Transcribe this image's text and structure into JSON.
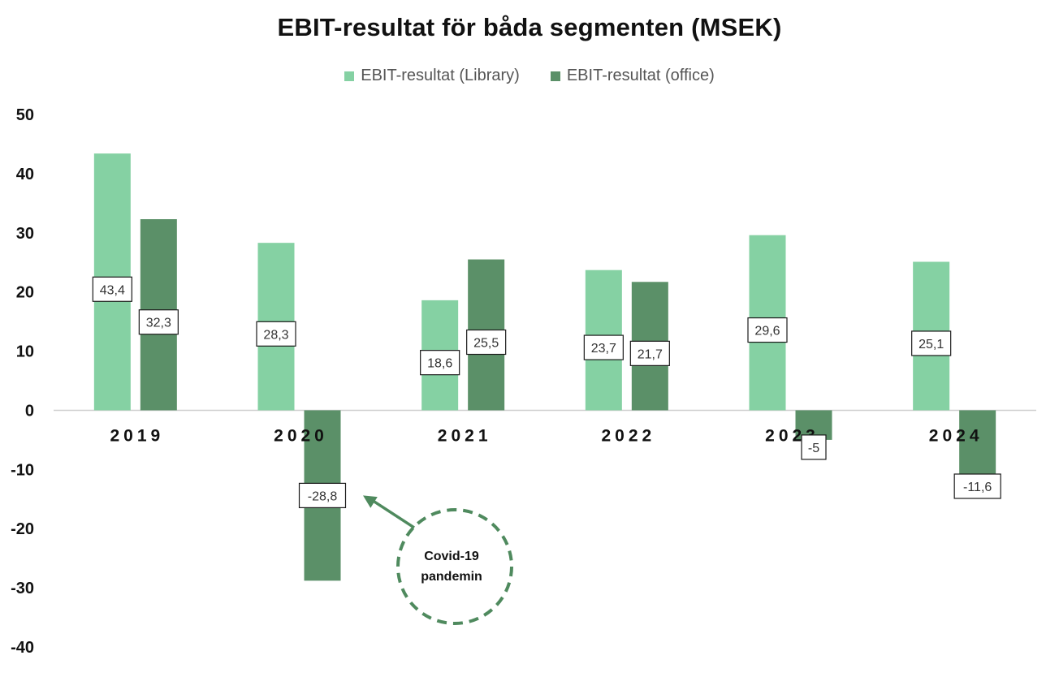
{
  "chart_data": {
    "type": "bar",
    "title": "EBIT-resultat för båda segmenten (MSEK)",
    "categories": [
      "2019",
      "2020",
      "2021",
      "2022",
      "2023",
      "2024"
    ],
    "series": [
      {
        "name": "EBIT-resultat (Library)",
        "color": "#85d1a3",
        "values": [
          43.4,
          28.3,
          18.6,
          23.7,
          29.6,
          25.1
        ],
        "labels": [
          "43,4",
          "28,3",
          "18,6",
          "23,7",
          "29,6",
          "25,1"
        ]
      },
      {
        "name": "EBIT-resultat (office)",
        "color": "#5b9068",
        "values": [
          32.3,
          -28.8,
          25.5,
          21.7,
          -5,
          -11.6
        ],
        "labels": [
          "32,3",
          "-28,8",
          "25,5",
          "21,7",
          "-5",
          "-11,6"
        ]
      }
    ],
    "ylim": [
      -40,
      50
    ],
    "yticks": [
      50,
      40,
      30,
      20,
      10,
      0,
      -10,
      -20,
      -30,
      -40
    ],
    "xlabel": "",
    "ylabel": "",
    "grid": false,
    "legend": "top-center",
    "annotations": [
      {
        "text_lines": [
          "Covid-19",
          "pandemin"
        ],
        "points_to": {
          "category": "2020",
          "series": "EBIT-resultat (office)"
        },
        "color": "#4f8a5e"
      }
    ]
  }
}
